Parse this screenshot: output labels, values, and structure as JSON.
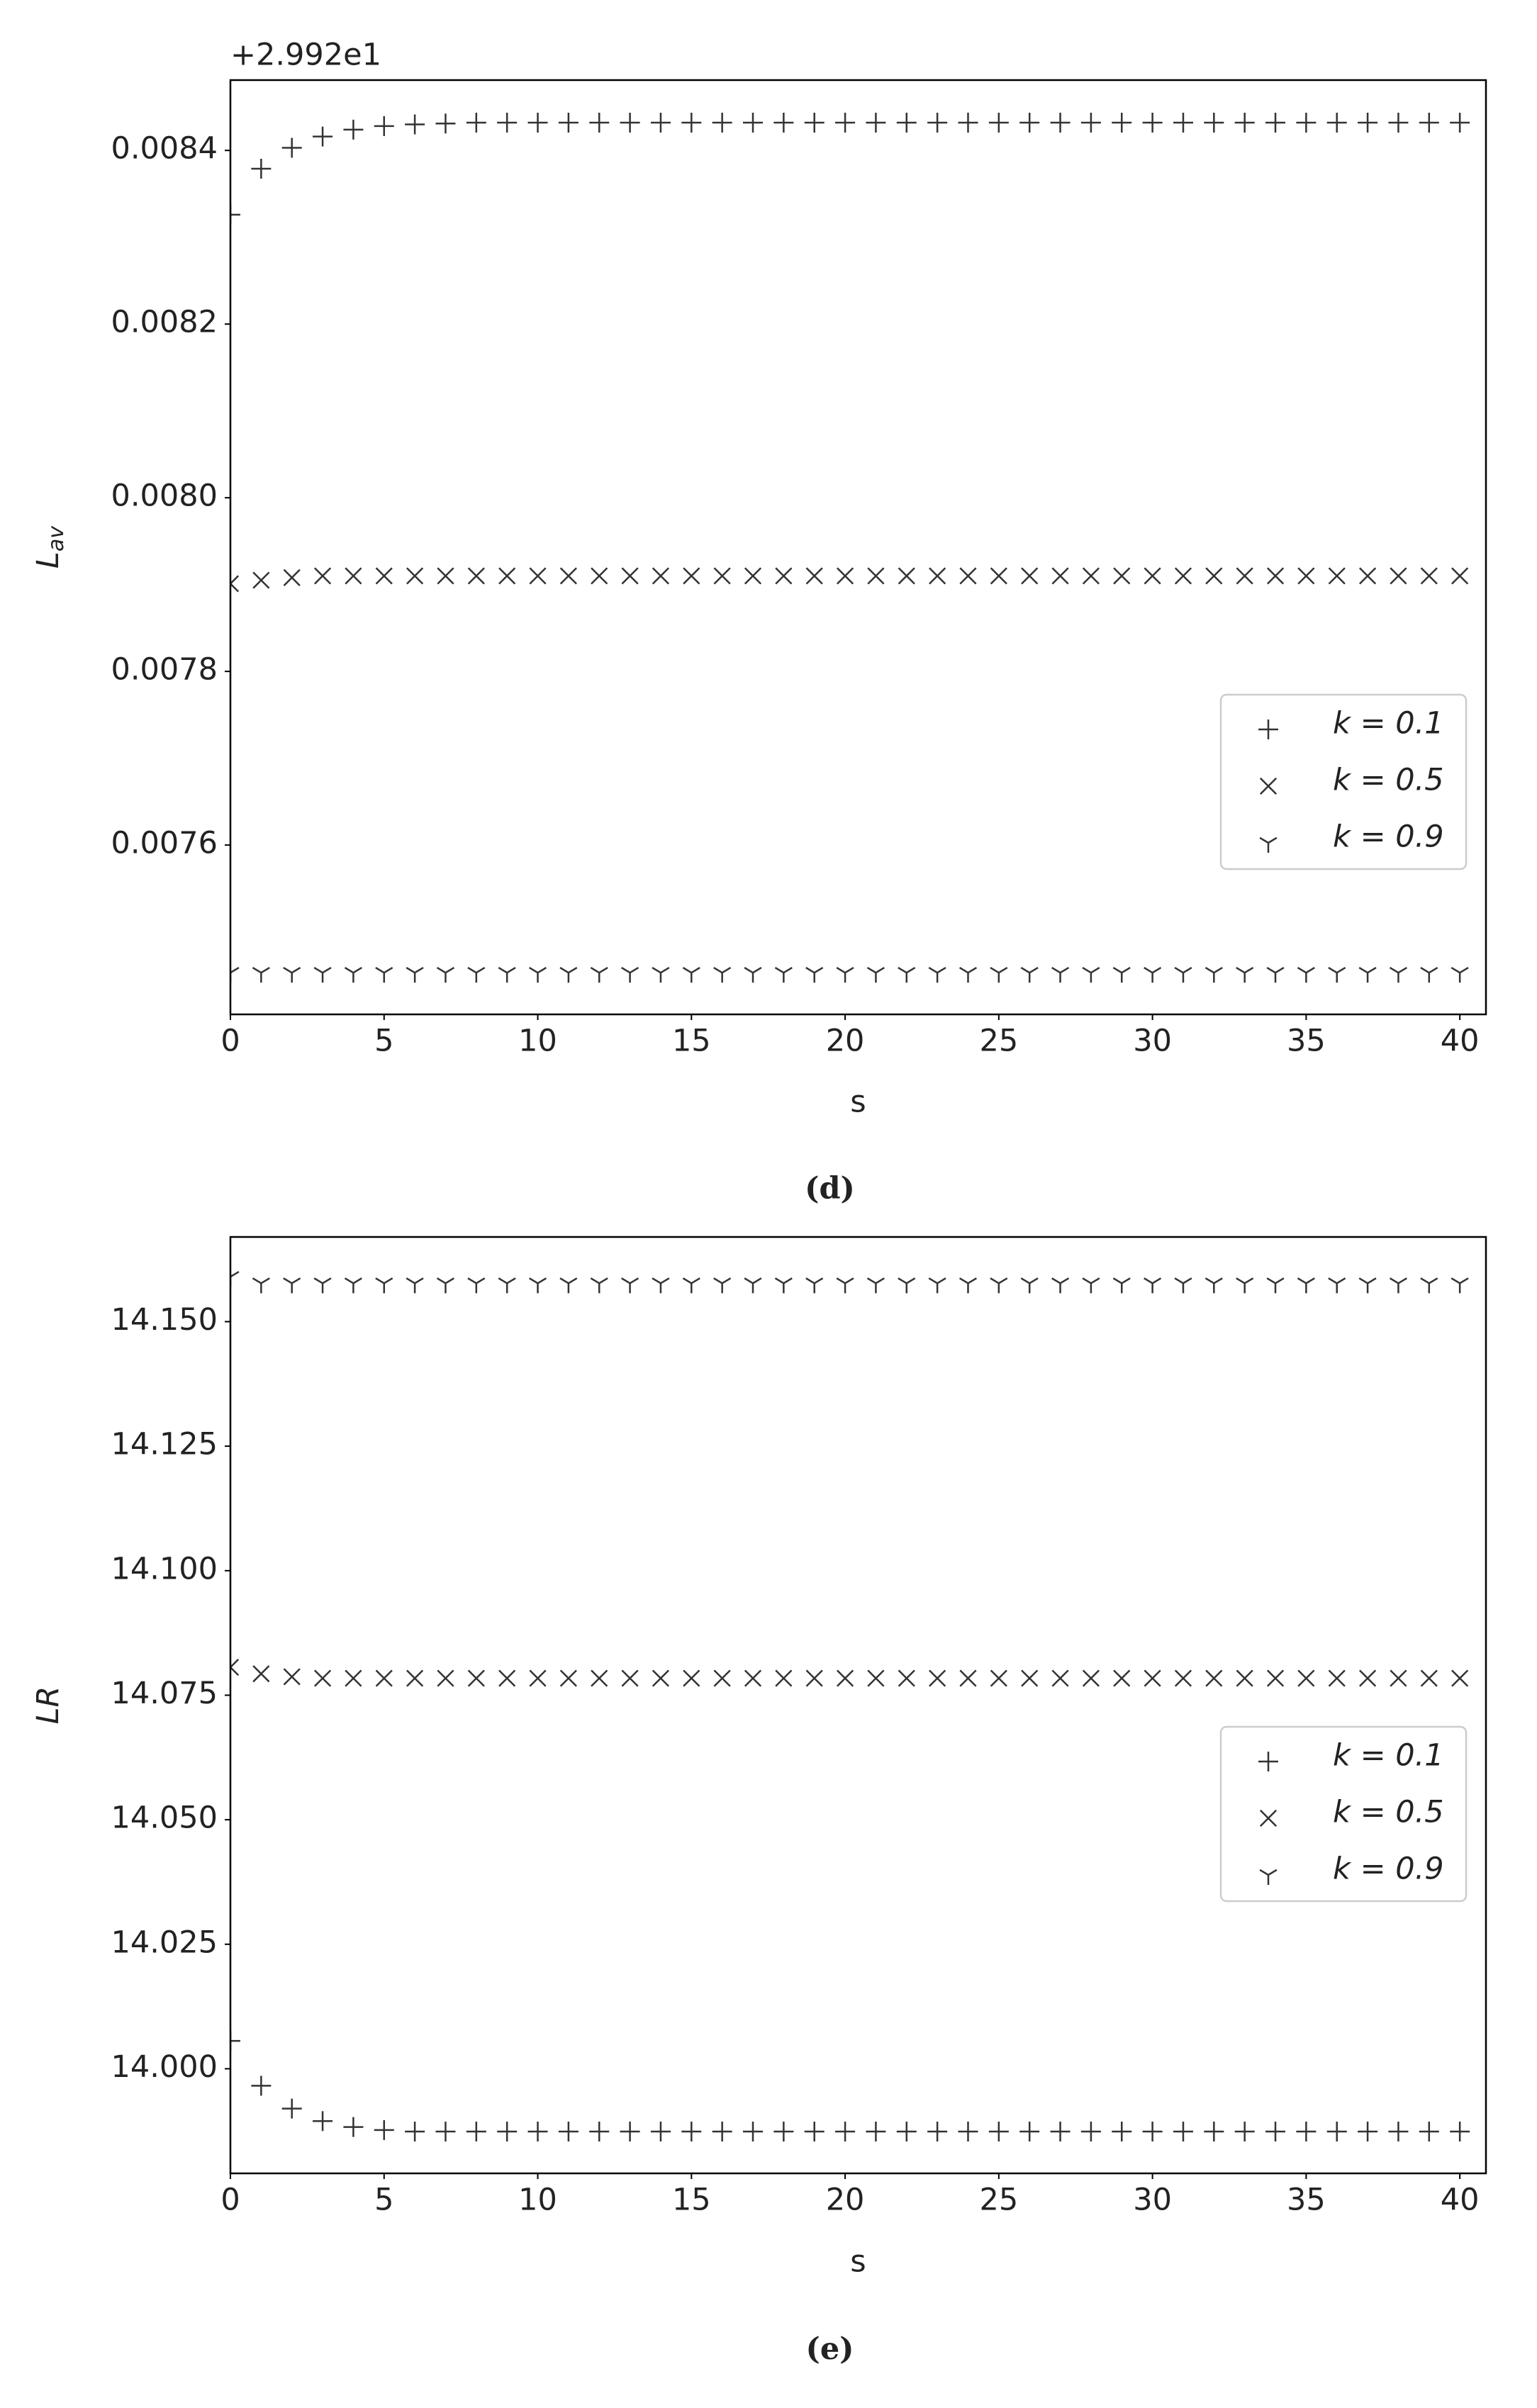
{
  "chart_data": [
    {
      "type": "scatter",
      "caption": "(d)",
      "offset_label": "+2.992e1",
      "xlabel": "s",
      "ylabel": "L",
      "ylabel_subscript": "av",
      "x": [
        0,
        1,
        2,
        3,
        4,
        5,
        6,
        7,
        8,
        9,
        10,
        11,
        12,
        13,
        14,
        15,
        16,
        17,
        18,
        19,
        20,
        21,
        22,
        23,
        24,
        25,
        26,
        27,
        28,
        29,
        30,
        31,
        32,
        33,
        34,
        35,
        36,
        37,
        38,
        39,
        40
      ],
      "xlim": [
        0,
        40.85
      ],
      "xticks": [
        0,
        5,
        10,
        15,
        20,
        25,
        30,
        35,
        40
      ],
      "ylim": [
        0.007405,
        0.008481
      ],
      "yticks": [
        0.0076,
        0.0078,
        {
          "value": 0.008,
          "label": "0.0080"
        },
        0.0082,
        0.0084
      ],
      "legend": "center right",
      "series": [
        {
          "name": "k = 0.1",
          "marker": "plus",
          "color": "#333333",
          "values": [
            0.008326,
            0.008379,
            0.008403,
            0.008416,
            0.008424,
            0.008428,
            0.00843,
            0.008431,
            0.008432,
            0.008432,
            0.008432,
            0.008432,
            0.008432,
            0.008432,
            0.008432,
            0.008432,
            0.008432,
            0.008432,
            0.008432,
            0.008432,
            0.008432,
            0.008432,
            0.008432,
            0.008432,
            0.008432,
            0.008432,
            0.008432,
            0.008432,
            0.008432,
            0.008432,
            0.008432,
            0.008432,
            0.008432,
            0.008432,
            0.008432,
            0.008432,
            0.008432,
            0.008432,
            0.008432,
            0.008432,
            0.008432
          ]
        },
        {
          "name": "k = 0.5",
          "marker": "x",
          "color": "#333333",
          "values": [
            0.007901,
            0.007905,
            0.007908,
            0.00791,
            0.00791,
            0.00791,
            0.00791,
            0.00791,
            0.00791,
            0.00791,
            0.00791,
            0.00791,
            0.00791,
            0.00791,
            0.00791,
            0.00791,
            0.00791,
            0.00791,
            0.00791,
            0.00791,
            0.00791,
            0.00791,
            0.00791,
            0.00791,
            0.00791,
            0.00791,
            0.00791,
            0.00791,
            0.00791,
            0.00791,
            0.00791,
            0.00791,
            0.00791,
            0.00791,
            0.00791,
            0.00791,
            0.00791,
            0.00791,
            0.00791,
            0.00791,
            0.00791
          ]
        },
        {
          "name": "k = 0.9",
          "marker": "tri_down",
          "color": "#333333",
          "values": [
            0.007453,
            0.007453,
            0.007453,
            0.007453,
            0.007453,
            0.007453,
            0.007453,
            0.007453,
            0.007453,
            0.007453,
            0.007453,
            0.007453,
            0.007453,
            0.007453,
            0.007453,
            0.007453,
            0.007453,
            0.007453,
            0.007453,
            0.007453,
            0.007453,
            0.007453,
            0.007453,
            0.007453,
            0.007453,
            0.007453,
            0.007453,
            0.007453,
            0.007453,
            0.007453,
            0.007453,
            0.007453,
            0.007453,
            0.007453,
            0.007453,
            0.007453,
            0.007453,
            0.007453,
            0.007453,
            0.007453,
            0.007453
          ]
        }
      ]
    },
    {
      "type": "scatter",
      "caption": "(e)",
      "xlabel": "s",
      "ylabel": "LR",
      "x": [
        0,
        1,
        2,
        3,
        4,
        5,
        6,
        7,
        8,
        9,
        10,
        11,
        12,
        13,
        14,
        15,
        16,
        17,
        18,
        19,
        20,
        21,
        22,
        23,
        24,
        25,
        26,
        27,
        28,
        29,
        30,
        31,
        32,
        33,
        34,
        35,
        36,
        37,
        38,
        39,
        40
      ],
      "xlim": [
        0,
        40.85
      ],
      "xticks": [
        0,
        5,
        10,
        15,
        20,
        25,
        30,
        35,
        40
      ],
      "ylim": [
        13.979,
        14.167
      ],
      "yticks": [
        {
          "value": 14,
          "label": "14.000"
        },
        14.025,
        {
          "value": 14.05,
          "label": "14.050"
        },
        14.075,
        {
          "value": 14.1,
          "label": "14.100"
        },
        14.125,
        {
          "value": 14.15,
          "label": "14.150"
        }
      ],
      "legend": "center right",
      "series": [
        {
          "name": "k = 0.1",
          "marker": "plus",
          "color": "#333333",
          "values": [
            14.0056,
            13.9966,
            13.992,
            13.9895,
            13.9883,
            13.9877,
            13.9874,
            13.9874,
            13.9874,
            13.9874,
            13.9874,
            13.9874,
            13.9874,
            13.9874,
            13.9874,
            13.9874,
            13.9874,
            13.9874,
            13.9874,
            13.9874,
            13.9874,
            13.9874,
            13.9874,
            13.9874,
            13.9874,
            13.9874,
            13.9874,
            13.9874,
            13.9874,
            13.9874,
            13.9874,
            13.9874,
            13.9874,
            13.9874,
            13.9874,
            13.9874,
            13.9874,
            13.9874,
            13.9874,
            13.9874,
            13.9874
          ]
        },
        {
          "name": "k = 0.5",
          "marker": "x",
          "color": "#333333",
          "values": [
            14.0806,
            14.0793,
            14.0787,
            14.0784,
            14.0784,
            14.0784,
            14.0784,
            14.0784,
            14.0784,
            14.0784,
            14.0784,
            14.0784,
            14.0784,
            14.0784,
            14.0784,
            14.0784,
            14.0784,
            14.0784,
            14.0784,
            14.0784,
            14.0784,
            14.0784,
            14.0784,
            14.0784,
            14.0784,
            14.0784,
            14.0784,
            14.0784,
            14.0784,
            14.0784,
            14.0784,
            14.0784,
            14.0784,
            14.0784,
            14.0784,
            14.0784,
            14.0784,
            14.0784,
            14.0784,
            14.0784,
            14.0784
          ]
        },
        {
          "name": "k = 0.9",
          "marker": "tri_down",
          "color": "#333333",
          "values": [
            14.159,
            14.1577,
            14.1577,
            14.1577,
            14.1577,
            14.1577,
            14.1577,
            14.1577,
            14.1577,
            14.1577,
            14.1577,
            14.1577,
            14.1577,
            14.1577,
            14.1577,
            14.1577,
            14.1577,
            14.1577,
            14.1577,
            14.1577,
            14.1577,
            14.1577,
            14.1577,
            14.1577,
            14.1577,
            14.1577,
            14.1577,
            14.1577,
            14.1577,
            14.1577,
            14.1577,
            14.1577,
            14.1577,
            14.1577,
            14.1577,
            14.1577,
            14.1577,
            14.1577,
            14.1577,
            14.1577,
            14.1577
          ]
        }
      ]
    }
  ]
}
